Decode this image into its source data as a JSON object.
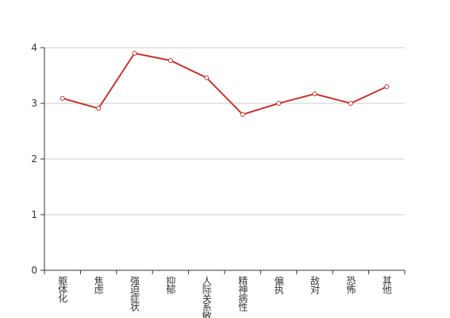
{
  "chart_data": {
    "type": "line",
    "categories": [
      "躯体化",
      "焦虑",
      "强迫症状",
      "抑郁",
      "人际关系敏感",
      "精神病性",
      "偏执",
      "敌对",
      "恐怖",
      "其他"
    ],
    "values": [
      3.09,
      2.91,
      3.9,
      3.77,
      3.46,
      2.8,
      3.0,
      3.17,
      3.0,
      3.3
    ],
    "color": "#c23531",
    "ylim": [
      0,
      4
    ],
    "yticks": [
      0,
      1,
      2,
      3,
      4
    ],
    "grid": true
  }
}
